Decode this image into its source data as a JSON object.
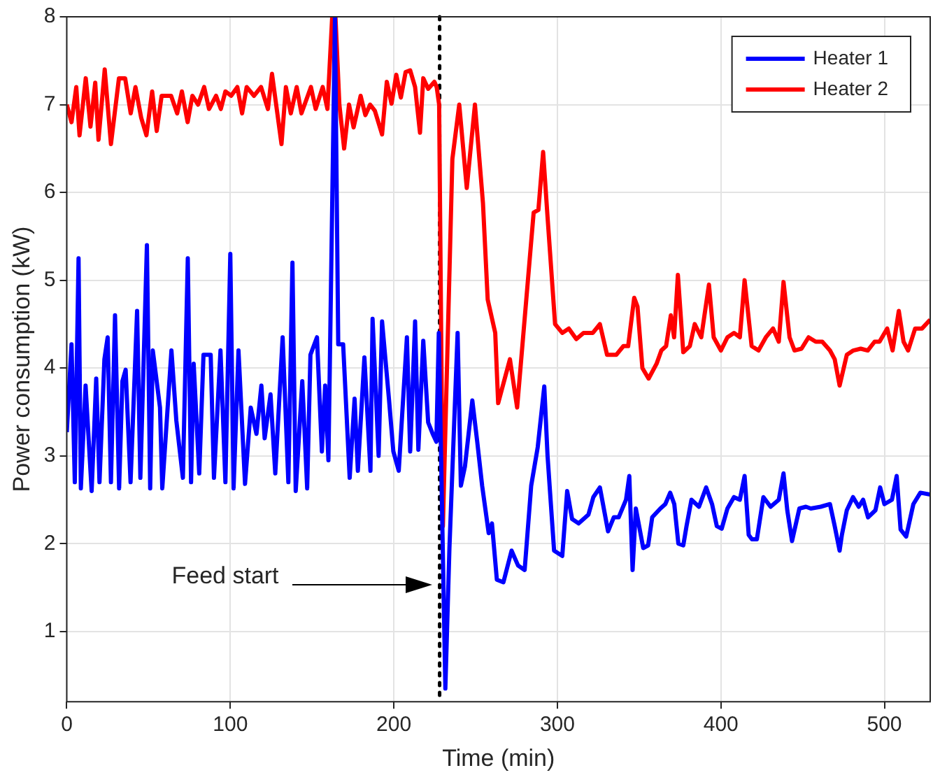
{
  "chart_data": {
    "type": "line",
    "xlabel": "Time (min)",
    "ylabel": "Power consumption (kW)",
    "xlim": [
      0,
      528
    ],
    "xticks": [
      0,
      100,
      200,
      300,
      400,
      500
    ],
    "ylim": [
      0.2,
      8
    ],
    "yticks": [
      1,
      2,
      3,
      4,
      5,
      6,
      7,
      8
    ],
    "grid": true,
    "legend": "top right",
    "line_style": "solid",
    "marker": "none",
    "series": [
      {
        "name": "Heater 1",
        "color": "#0000ff",
        "x": [
          0,
          2.9,
          4.9,
          7.2,
          8.6,
          11.5,
          15.2,
          18,
          20,
          23,
          25,
          27,
          29.5,
          32,
          34,
          36,
          39,
          43,
          45,
          49,
          51,
          52.6,
          57,
          58.4,
          64,
          67,
          71,
          74,
          76,
          77.6,
          81,
          83.6,
          88,
          90,
          94,
          97,
          100,
          102,
          105,
          109,
          112.5,
          116,
          119,
          121,
          124.6,
          127.5,
          132,
          135.5,
          138,
          140,
          144,
          147,
          149,
          153,
          156,
          158,
          160,
          164,
          166,
          169,
          173,
          176,
          178,
          182,
          185.7,
          187,
          190.7,
          192.8,
          197,
          199.7,
          203,
          208,
          210,
          213,
          215,
          218,
          221,
          224,
          226,
          227.5,
          231.5,
          234,
          239,
          241,
          243.5,
          248,
          251,
          254,
          258,
          260,
          263,
          267,
          272,
          276,
          280,
          284,
          288,
          292,
          294,
          298,
          303,
          306,
          309,
          313,
          319,
          322,
          326,
          331,
          334.5,
          337.5,
          342,
          344,
          346,
          348,
          352.5,
          355.5,
          358,
          363,
          366,
          369,
          371.5,
          374,
          377,
          379,
          382,
          386.6,
          391,
          394.6,
          397.5,
          400.5,
          404,
          408,
          411.6,
          414.5,
          417,
          419,
          422,
          426,
          430.4,
          435.4,
          438.3,
          440.6,
          443.5,
          448,
          452,
          455,
          461,
          466.7,
          469.6,
          472.6,
          474,
          477,
          480.8,
          484.3,
          487,
          490,
          494.5,
          497.4,
          500,
          504.6,
          507.5,
          509.9,
          513.3,
          517.7,
          522,
          528
        ],
        "values": [
          3.27,
          4.27,
          2.7,
          5.25,
          2.63,
          3.8,
          2.6,
          3.88,
          2.7,
          4.1,
          4.35,
          2.7,
          4.6,
          2.63,
          3.85,
          3.98,
          2.7,
          4.65,
          2.75,
          5.4,
          2.63,
          4.2,
          3.55,
          2.63,
          4.2,
          3.4,
          2.75,
          5.25,
          2.7,
          4.05,
          2.8,
          4.15,
          4.15,
          2.75,
          4.2,
          2.7,
          5.3,
          2.63,
          4.2,
          2.68,
          3.55,
          3.25,
          3.8,
          3.2,
          3.7,
          2.8,
          4.35,
          2.7,
          5.2,
          2.6,
          3.85,
          2.63,
          4.15,
          4.35,
          3.05,
          3.8,
          2.95,
          8,
          4.27,
          4.27,
          2.75,
          3.65,
          2.83,
          4.12,
          2.83,
          4.56,
          3.0,
          4.53,
          3.65,
          3.05,
          2.83,
          4.35,
          3.05,
          4.53,
          3.07,
          4.31,
          3.38,
          3.24,
          3.16,
          4.4,
          0.35,
          1.95,
          4.4,
          2.66,
          2.88,
          3.63,
          3.16,
          2.66,
          2.12,
          2.23,
          1.59,
          1.56,
          1.92,
          1.75,
          1.7,
          2.66,
          3.1,
          3.79,
          3.0,
          1.92,
          1.86,
          2.6,
          2.28,
          2.23,
          2.33,
          2.53,
          2.64,
          2.14,
          2.3,
          2.3,
          2.5,
          2.77,
          1.7,
          2.4,
          1.95,
          1.98,
          2.3,
          2.4,
          2.45,
          2.58,
          2.45,
          2.0,
          1.98,
          2.2,
          2.5,
          2.42,
          2.64,
          2.45,
          2.2,
          2.17,
          2.4,
          2.53,
          2.5,
          2.77,
          2.1,
          2.05,
          2.05,
          2.53,
          2.42,
          2.5,
          2.8,
          2.38,
          2.03,
          2.4,
          2.42,
          2.4,
          2.42,
          2.45,
          2.2,
          1.92,
          2.1,
          2.38,
          2.53,
          2.42,
          2.5,
          2.3,
          2.38,
          2.64,
          2.45,
          2.5,
          2.77,
          2.16,
          2.08,
          2.45,
          2.58,
          2.56
        ]
      },
      {
        "name": "Heater 2",
        "color": "#ff0000",
        "x": [
          0,
          2.9,
          5.8,
          7.8,
          11.6,
          14.5,
          17.4,
          19.4,
          23.2,
          27,
          31.9,
          35.7,
          39.1,
          42,
          45.5,
          48.7,
          52.2,
          55,
          58,
          63.8,
          67.5,
          70.4,
          73.9,
          76.8,
          80.3,
          84,
          87,
          91.3,
          94.2,
          97,
          100.5,
          104.3,
          107.2,
          110,
          114.5,
          118.8,
          123,
          125.5,
          128.4,
          131.3,
          134,
          137,
          140.6,
          143.5,
          146.4,
          149.3,
          152.2,
          156.5,
          159.4,
          162.3,
          164.3,
          166.7,
          169.6,
          172.6,
          175.4,
          179.7,
          182.6,
          185.5,
          188.4,
          192.8,
          195.7,
          198.6,
          201.5,
          204.3,
          207.2,
          210,
          213,
          216,
          218,
          221,
          224.8,
          226.2,
          227.7,
          230,
          235.8,
          240,
          244.6,
          249.6,
          254.5,
          257.4,
          262,
          263.8,
          271,
          275.4,
          285.5,
          288.4,
          291.3,
          294,
          298.6,
          303,
          307,
          311.6,
          316,
          321.7,
          326,
          330.4,
          336,
          340.4,
          343.3,
          347,
          349,
          352,
          355.8,
          360.7,
          363.6,
          366.5,
          369.4,
          371.4,
          373.7,
          377,
          381,
          384,
          388,
          392.7,
          395.6,
          400,
          404,
          408,
          411.6,
          414.5,
          418.8,
          423,
          427.5,
          431.9,
          435.4,
          438.3,
          442,
          445,
          449.3,
          453.6,
          458,
          462,
          466.7,
          469.6,
          472.6,
          477,
          481,
          485.5,
          489.8,
          494,
          497,
          501.7,
          505,
          508.8,
          511.7,
          514.5,
          518.8,
          523,
          528
        ],
        "values": [
          7.0,
          6.8,
          7.2,
          6.65,
          7.3,
          6.75,
          7.25,
          6.6,
          7.4,
          6.55,
          7.3,
          7.3,
          6.9,
          7.2,
          6.85,
          6.65,
          7.15,
          6.7,
          7.1,
          7.1,
          6.9,
          7.15,
          6.8,
          7.1,
          7.0,
          7.2,
          6.95,
          7.1,
          6.95,
          7.15,
          7.1,
          7.2,
          6.9,
          7.2,
          7.1,
          7.2,
          6.95,
          7.35,
          6.95,
          6.55,
          7.2,
          6.9,
          7.2,
          6.9,
          7.05,
          7.2,
          6.95,
          7.2,
          6.95,
          8,
          8,
          7.0,
          6.5,
          7.0,
          6.74,
          7.1,
          6.88,
          7.0,
          6.93,
          6.66,
          7.26,
          7.01,
          7.34,
          7.08,
          7.37,
          7.39,
          7.2,
          6.68,
          7.3,
          7.18,
          7.26,
          7.2,
          7.0,
          2.2,
          6.38,
          7.0,
          6.05,
          7.0,
          5.88,
          4.78,
          4.4,
          3.6,
          4.1,
          3.55,
          5.77,
          5.8,
          6.46,
          5.72,
          4.5,
          4.4,
          4.45,
          4.33,
          4.4,
          4.4,
          4.5,
          4.15,
          4.15,
          4.25,
          4.25,
          4.8,
          4.7,
          4.0,
          3.88,
          4.05,
          4.2,
          4.25,
          4.6,
          4.35,
          5.06,
          4.18,
          4.25,
          4.5,
          4.35,
          4.95,
          4.35,
          4.2,
          4.35,
          4.4,
          4.35,
          5.0,
          4.25,
          4.2,
          4.35,
          4.45,
          4.3,
          4.98,
          4.35,
          4.2,
          4.22,
          4.35,
          4.3,
          4.3,
          4.2,
          4.1,
          3.8,
          4.15,
          4.2,
          4.22,
          4.2,
          4.3,
          4.3,
          4.45,
          4.2,
          4.65,
          4.3,
          4.2,
          4.45,
          4.45,
          4.55
        ]
      }
    ],
    "ref_lines": [
      {
        "axis": "x",
        "value": 228,
        "color": "#000000",
        "line_style": "dotted"
      }
    ],
    "annotations": [
      "Feed start"
    ]
  }
}
